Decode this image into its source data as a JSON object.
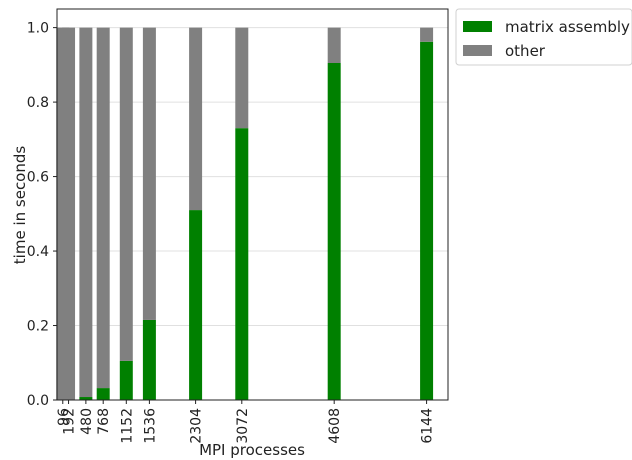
{
  "chart_data": {
    "type": "bar",
    "stacked": true,
    "normalized": true,
    "categories": [
      "96",
      "192",
      "480",
      "768",
      "1152",
      "1536",
      "2304",
      "3072",
      "4608",
      "6144"
    ],
    "series": [
      {
        "name": "matrix assembly",
        "color": "#008000",
        "values": [
          0.0,
          0.0,
          0.008,
          0.032,
          0.105,
          0.215,
          0.51,
          0.73,
          0.905,
          0.962
        ]
      },
      {
        "name": "other",
        "color": "#808080",
        "values": [
          1.0,
          1.0,
          0.992,
          0.968,
          0.895,
          0.785,
          0.49,
          0.27,
          0.095,
          0.038
        ]
      }
    ],
    "xlabel": "MPI processes",
    "ylabel": "time in seconds",
    "ylim": [
      0,
      1.05
    ],
    "yticks": [
      "0.0",
      "0.2",
      "0.4",
      "0.6",
      "0.8",
      "1.0"
    ],
    "grid": true,
    "legend": "outside-top-right"
  }
}
